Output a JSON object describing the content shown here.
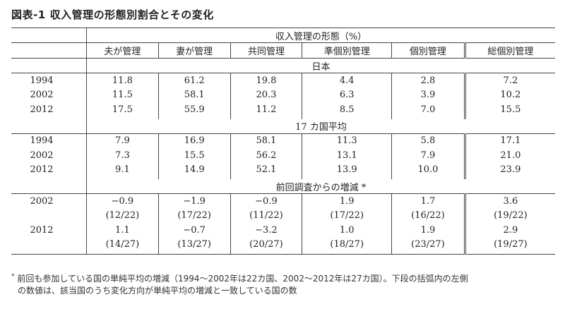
{
  "title": {
    "label": "図表-1",
    "text": "収入管理の形態別割合とその変化"
  },
  "header": {
    "main": "収入管理の形態（%）",
    "columns": [
      "夫が管理",
      "妻が管理",
      "共同管理",
      "準個別管理",
      "個別管理",
      "総個別管理"
    ]
  },
  "sections": [
    {
      "name": "日本",
      "rows": [
        {
          "label": "1994",
          "values": [
            "11.8",
            "61.2",
            "19.8",
            "4.4",
            "2.8",
            "7.2"
          ]
        },
        {
          "label": "2002",
          "values": [
            "11.5",
            "58.1",
            "20.3",
            "6.3",
            "3.9",
            "10.2"
          ]
        },
        {
          "label": "2012",
          "values": [
            "17.5",
            "55.9",
            "11.2",
            "8.5",
            "7.0",
            "15.5"
          ]
        }
      ]
    },
    {
      "name": "17 カ国平均",
      "rows": [
        {
          "label": "1994",
          "values": [
            "7.9",
            "16.9",
            "58.1",
            "11.3",
            "5.8",
            "17.1"
          ]
        },
        {
          "label": "2002",
          "values": [
            "7.3",
            "15.5",
            "56.2",
            "13.1",
            "7.9",
            "21.0"
          ]
        },
        {
          "label": "2012",
          "values": [
            "9.1",
            "14.9",
            "52.1",
            "13.9",
            "10.0",
            "23.9"
          ]
        }
      ]
    },
    {
      "name": "前回調査からの増減 *",
      "rows": [
        {
          "label": "2002",
          "values": [
            "−0.9",
            "−1.9",
            "−0.9",
            "1.9",
            "1.7",
            "3.6"
          ]
        },
        {
          "label": "",
          "values": [
            "(12/22)",
            "(17/22)",
            "(11/22)",
            "(17/22)",
            "(16/22)",
            "(19/22)"
          ]
        },
        {
          "label": "2012",
          "values": [
            "1.1",
            "−0.7",
            "−3.2",
            "1.0",
            "1.9",
            "2.9"
          ]
        },
        {
          "label": "",
          "values": [
            "(14/27)",
            "(13/27)",
            "(20/27)",
            "(18/27)",
            "(23/27)",
            "(19/27)"
          ]
        }
      ]
    }
  ],
  "footnote": {
    "star": "*",
    "line1": "前回も参加している国の単純平均の増減（1994～2002年は22カ国、2002～2012年は27カ国）。下段の括弧内の左側",
    "line2": "の数値は、該当国のうち変化方向が単純平均の増減と一致している国の数"
  }
}
